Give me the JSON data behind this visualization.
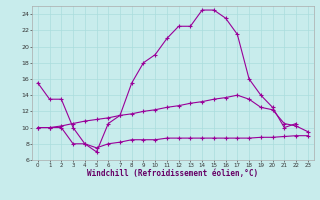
{
  "xlabel": "Windchill (Refroidissement éolien,°C)",
  "background_color": "#c8ecec",
  "line_color": "#990099",
  "xlim": [
    -0.5,
    23.5
  ],
  "ylim": [
    6,
    25
  ],
  "xticks": [
    0,
    1,
    2,
    3,
    4,
    5,
    6,
    7,
    8,
    9,
    10,
    11,
    12,
    13,
    14,
    15,
    16,
    17,
    18,
    19,
    20,
    21,
    22,
    23
  ],
  "yticks": [
    6,
    8,
    10,
    12,
    14,
    16,
    18,
    20,
    22,
    24
  ],
  "series1_x": [
    0,
    1,
    2,
    3,
    4,
    5,
    6,
    7,
    8,
    9,
    10,
    11,
    12,
    13,
    14,
    15,
    16,
    17,
    18,
    19,
    20,
    21,
    22
  ],
  "series1_y": [
    15.5,
    13.5,
    13.5,
    10.0,
    8.0,
    7.0,
    10.5,
    11.5,
    15.5,
    18.0,
    19.0,
    21.0,
    22.5,
    22.5,
    24.5,
    24.5,
    23.5,
    21.5,
    16.0,
    14.0,
    12.5,
    10.0,
    10.5
  ],
  "series2_x": [
    0,
    1,
    2,
    3,
    4,
    5,
    6,
    7,
    8,
    9,
    10,
    11,
    12,
    13,
    14,
    15,
    16,
    17,
    18,
    19,
    20,
    21,
    22,
    23
  ],
  "series2_y": [
    10.0,
    10.0,
    10.2,
    10.5,
    10.8,
    11.0,
    11.2,
    11.5,
    11.7,
    12.0,
    12.2,
    12.5,
    12.7,
    13.0,
    13.2,
    13.5,
    13.7,
    14.0,
    13.5,
    12.5,
    12.2,
    10.5,
    10.2,
    9.5
  ],
  "series3_x": [
    0,
    1,
    2,
    3,
    4,
    5,
    6,
    7,
    8,
    9,
    10,
    11,
    12,
    13,
    14,
    15,
    16,
    17,
    18,
    19,
    20,
    21,
    22,
    23
  ],
  "series3_y": [
    10.0,
    10.0,
    10.0,
    8.0,
    8.0,
    7.5,
    8.0,
    8.2,
    8.5,
    8.5,
    8.5,
    8.7,
    8.7,
    8.7,
    8.7,
    8.7,
    8.7,
    8.7,
    8.7,
    8.8,
    8.8,
    8.9,
    9.0,
    9.0
  ],
  "grid_color": "#aadddd",
  "xlabel_color": "#660066",
  "xlabel_fontsize": 5.5
}
